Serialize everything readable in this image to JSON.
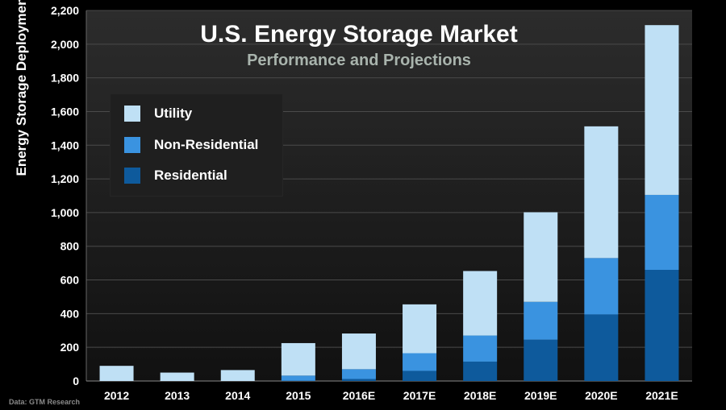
{
  "chart_data": {
    "type": "bar",
    "stacked": true,
    "title": "U.S. Energy Storage Market",
    "subtitle": "Performance and Projections",
    "ylabel": "Energy Storage Deployment by Segment (MW)",
    "xlabel": "",
    "ylim": [
      0,
      2200
    ],
    "yticks": [
      "0",
      "200",
      "400",
      "600",
      "800",
      "1,000",
      "1,200",
      "1,400",
      "1,600",
      "1,800",
      "2,000",
      "2,200"
    ],
    "grid": true,
    "legend_position": "top-left",
    "categories": [
      "2012",
      "2013",
      "2014",
      "2015",
      "2016E",
      "2017E",
      "2018E",
      "2019E",
      "2020E",
      "2021E"
    ],
    "series": [
      {
        "name": "Residential",
        "color": "#0e5a9c",
        "values": [
          0,
          0,
          0,
          2,
          12,
          60,
          115,
          245,
          395,
          660
        ]
      },
      {
        "name": "Non-Residential",
        "color": "#3a93e0",
        "values": [
          0,
          0,
          0,
          30,
          58,
          105,
          155,
          225,
          335,
          445
        ]
      },
      {
        "name": "Utility",
        "color": "#bfe0f5",
        "values": [
          90,
          50,
          65,
          193,
          212,
          290,
          383,
          532,
          782,
          1008
        ]
      }
    ],
    "legend_order": [
      "Utility",
      "Non-Residential",
      "Residential"
    ],
    "source": "Data: GTM Research"
  }
}
